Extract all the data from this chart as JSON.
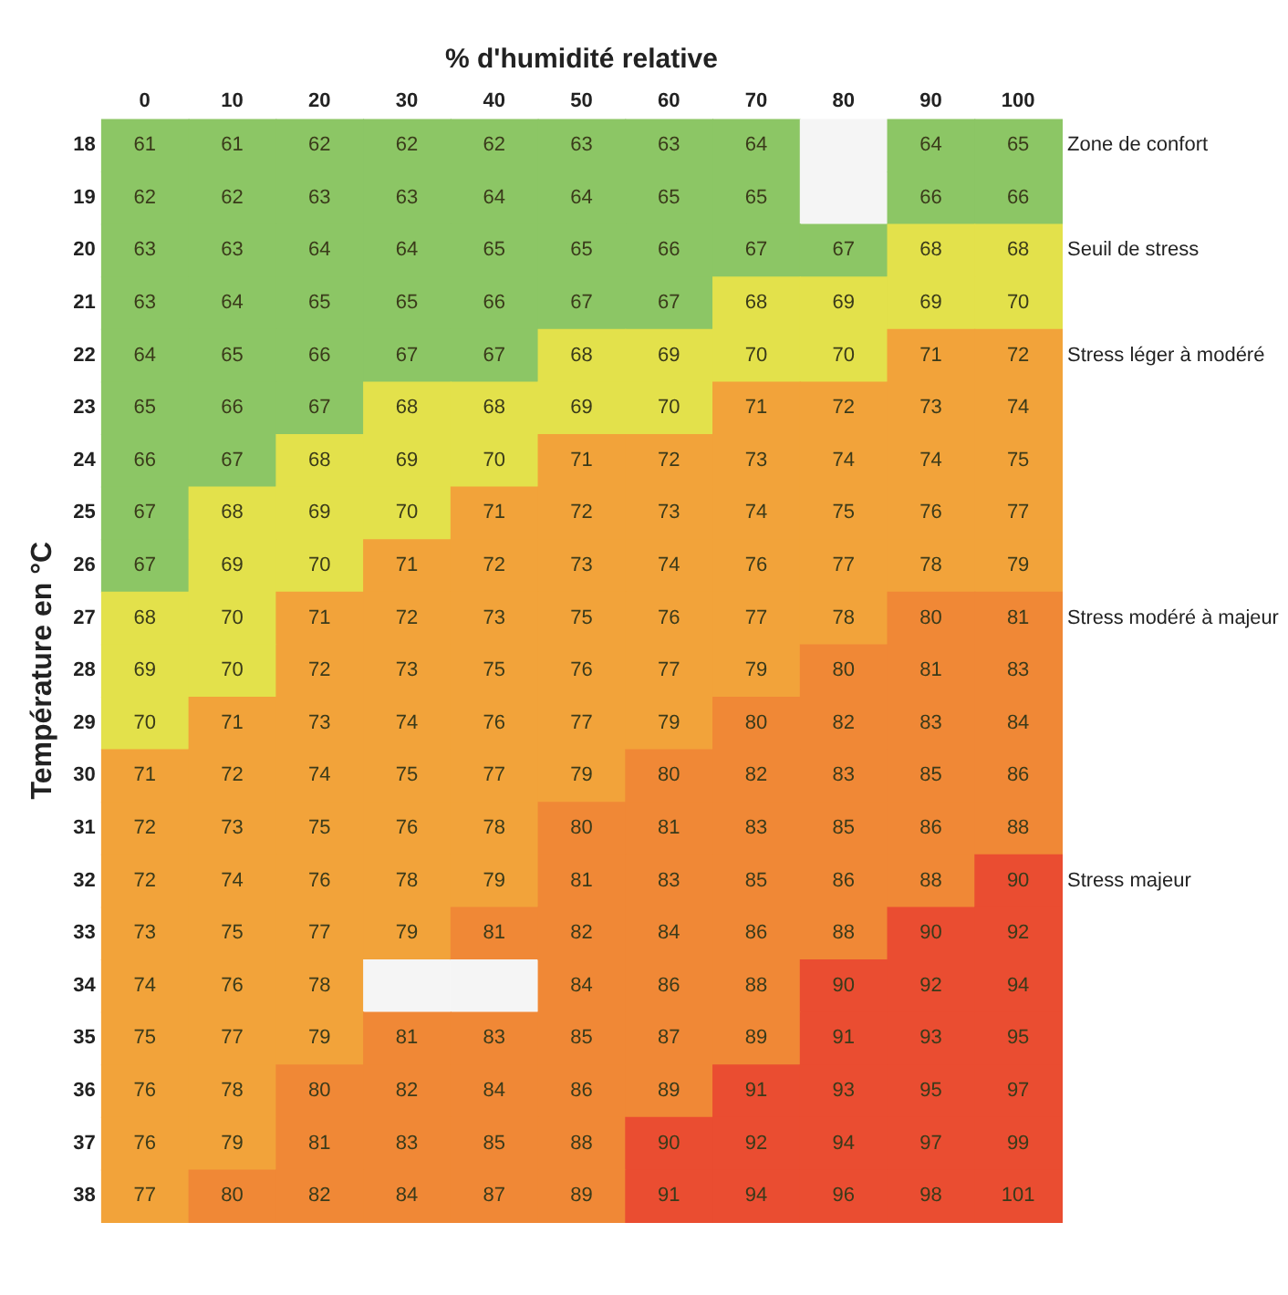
{
  "chart_data": {
    "type": "heatmap",
    "xlabel": "% d'humidité relative",
    "ylabel": "Température en °C",
    "categories": [
      "0",
      "10",
      "20",
      "30",
      "40",
      "50",
      "60",
      "70",
      "80",
      "90",
      "100"
    ],
    "y_categories": [
      "18",
      "19",
      "20",
      "21",
      "22",
      "23",
      "24",
      "25",
      "26",
      "27",
      "28",
      "29",
      "30",
      "31",
      "32",
      "33",
      "34",
      "35",
      "36",
      "37",
      "38"
    ],
    "cells": [
      [
        61,
        61,
        62,
        62,
        62,
        63,
        63,
        64,
        null,
        64,
        65
      ],
      [
        62,
        62,
        63,
        63,
        64,
        64,
        65,
        65,
        null,
        66,
        66
      ],
      [
        63,
        63,
        64,
        64,
        65,
        65,
        66,
        67,
        67,
        68,
        68
      ],
      [
        63,
        64,
        65,
        65,
        66,
        67,
        67,
        68,
        69,
        69,
        70
      ],
      [
        64,
        65,
        66,
        67,
        67,
        68,
        69,
        70,
        70,
        71,
        72
      ],
      [
        65,
        66,
        67,
        68,
        68,
        69,
        70,
        71,
        72,
        73,
        74
      ],
      [
        66,
        67,
        68,
        69,
        70,
        71,
        72,
        73,
        74,
        74,
        75
      ],
      [
        67,
        68,
        69,
        70,
        71,
        72,
        73,
        74,
        75,
        76,
        77
      ],
      [
        67,
        69,
        70,
        71,
        72,
        73,
        74,
        76,
        77,
        78,
        79
      ],
      [
        68,
        70,
        71,
        72,
        73,
        75,
        76,
        77,
        78,
        80,
        81
      ],
      [
        69,
        70,
        72,
        73,
        75,
        76,
        77,
        79,
        80,
        81,
        83
      ],
      [
        70,
        71,
        73,
        74,
        76,
        77,
        79,
        80,
        82,
        83,
        84
      ],
      [
        71,
        72,
        74,
        75,
        77,
        79,
        80,
        82,
        83,
        85,
        86
      ],
      [
        72,
        73,
        75,
        76,
        78,
        80,
        81,
        83,
        85,
        86,
        88
      ],
      [
        72,
        74,
        76,
        78,
        79,
        81,
        83,
        85,
        86,
        88,
        90
      ],
      [
        73,
        75,
        77,
        79,
        81,
        82,
        84,
        86,
        88,
        90,
        92
      ],
      [
        74,
        76,
        78,
        null,
        null,
        84,
        86,
        88,
        90,
        92,
        94
      ],
      [
        75,
        77,
        79,
        81,
        83,
        85,
        87,
        89,
        91,
        93,
        95
      ],
      [
        76,
        78,
        80,
        82,
        84,
        86,
        89,
        91,
        93,
        95,
        97
      ],
      [
        76,
        79,
        81,
        83,
        85,
        88,
        90,
        92,
        94,
        97,
        99
      ],
      [
        77,
        80,
        82,
        84,
        87,
        89,
        91,
        94,
        96,
        98,
        101
      ]
    ],
    "annotations": [
      "Zone de confort",
      "Seuil de stress",
      "Stress léger à modéré",
      "Stress modéré à majeur",
      "Stress majeur"
    ],
    "data_labels": true,
    "grid": false
  }
}
